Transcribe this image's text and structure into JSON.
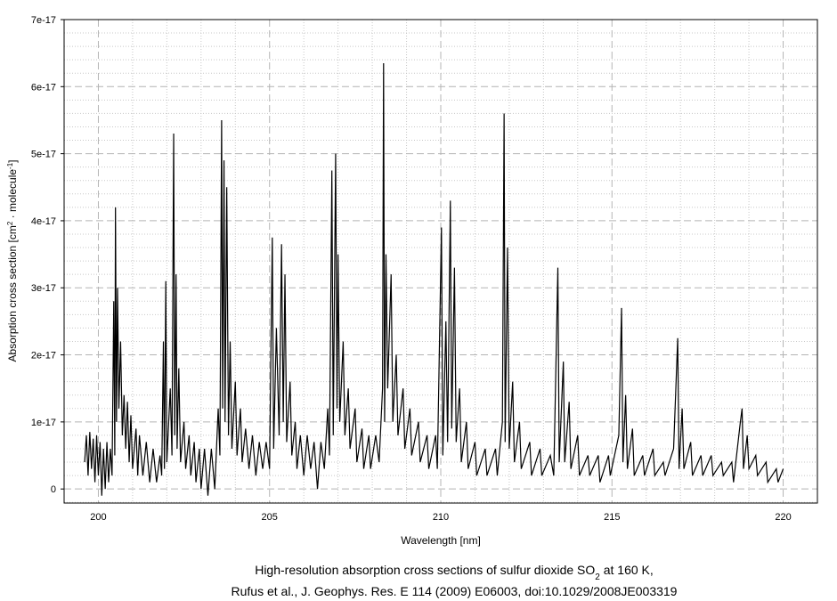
{
  "chart_data": {
    "type": "line",
    "x_label": "Wavelength [nm]",
    "y_label": [
      "Absorption cross section [cm",
      "2",
      " · molecule",
      "-1",
      "]"
    ],
    "caption": [
      [
        "High-resolution absorption cross sections of sulfur dioxide SO",
        "2",
        " at 160 K,"
      ],
      [
        "Rufus et al., J. Geophys. Res. E 114 (2009) E06003, doi:10.1029/2008JE003319"
      ]
    ],
    "color": "#000000",
    "grid": true,
    "xlim": [
      199,
      221
    ],
    "xticks": [
      200,
      205,
      210,
      215,
      220
    ],
    "ylim": [
      -2.1e-18,
      7e-17
    ],
    "yticks": [
      0,
      1e-17,
      2e-17,
      3e-17,
      4e-17,
      5e-17,
      6e-17,
      7e-17
    ],
    "x": [
      199.6,
      199.65,
      199.7,
      199.75,
      199.8,
      199.85,
      199.9,
      199.95,
      200.0,
      200.05,
      200.1,
      200.15,
      200.2,
      200.25,
      200.3,
      200.35,
      200.4,
      200.45,
      200.48,
      200.5,
      200.53,
      200.56,
      200.6,
      200.65,
      200.7,
      200.75,
      200.8,
      200.85,
      200.9,
      200.95,
      201.0,
      201.1,
      201.15,
      201.2,
      201.3,
      201.4,
      201.5,
      201.6,
      201.7,
      201.8,
      201.85,
      201.9,
      201.93,
      201.97,
      202.0,
      202.1,
      202.15,
      202.2,
      202.23,
      202.27,
      202.3,
      202.35,
      202.4,
      202.5,
      202.55,
      202.65,
      202.7,
      202.8,
      202.85,
      202.95,
      203.0,
      203.1,
      203.2,
      203.3,
      203.4,
      203.5,
      203.55,
      203.6,
      203.63,
      203.67,
      203.7,
      203.75,
      203.8,
      203.85,
      203.9,
      204.0,
      204.05,
      204.15,
      204.2,
      204.3,
      204.4,
      204.5,
      204.6,
      204.7,
      204.8,
      204.9,
      205.0,
      205.08,
      205.12,
      205.2,
      205.28,
      205.35,
      205.4,
      205.45,
      205.5,
      205.6,
      205.65,
      205.75,
      205.8,
      205.9,
      206.0,
      206.1,
      206.2,
      206.3,
      206.4,
      206.5,
      206.6,
      206.7,
      206.75,
      206.82,
      206.86,
      206.93,
      206.97,
      207.0,
      207.05,
      207.15,
      207.2,
      207.3,
      207.35,
      207.5,
      207.55,
      207.7,
      207.75,
      207.9,
      207.95,
      208.1,
      208.2,
      208.3,
      208.33,
      208.36,
      208.4,
      208.45,
      208.55,
      208.6,
      208.7,
      208.75,
      208.9,
      208.95,
      209.1,
      209.15,
      209.35,
      209.4,
      209.6,
      209.65,
      209.85,
      209.9,
      210.02,
      210.06,
      210.15,
      210.2,
      210.28,
      210.32,
      210.4,
      210.45,
      210.55,
      210.6,
      210.75,
      210.8,
      211.0,
      211.05,
      211.3,
      211.35,
      211.6,
      211.65,
      211.8,
      211.85,
      211.88,
      211.95,
      212.0,
      212.1,
      212.15,
      212.3,
      212.35,
      212.6,
      212.65,
      212.9,
      212.95,
      213.2,
      213.3,
      213.42,
      213.46,
      213.58,
      213.62,
      213.75,
      213.8,
      214.0,
      214.05,
      214.3,
      214.35,
      214.6,
      214.65,
      214.9,
      214.95,
      215.2,
      215.28,
      215.32,
      215.4,
      215.45,
      215.6,
      215.65,
      215.9,
      215.95,
      216.2,
      216.25,
      216.5,
      216.55,
      216.8,
      216.92,
      216.96,
      217.05,
      217.1,
      217.3,
      217.35,
      217.6,
      217.65,
      217.9,
      217.95,
      218.2,
      218.25,
      218.5,
      218.55,
      218.75,
      218.8,
      218.84,
      218.95,
      219.0,
      219.2,
      219.25,
      219.5,
      219.55,
      219.8,
      219.85,
      220.0
    ],
    "values": [
      4e-18,
      8e-18,
      2e-18,
      8.5e-18,
      3e-18,
      7.5e-18,
      1e-18,
      8e-18,
      2e-18,
      7e-18,
      -1e-18,
      6e-18,
      0,
      7e-18,
      1e-18,
      6e-18,
      2e-18,
      2.8e-17,
      5e-18,
      4.2e-17,
      1e-17,
      3e-17,
      1.2e-17,
      2.2e-17,
      8e-18,
      1.4e-17,
      6e-18,
      1.3e-17,
      4e-18,
      1.1e-17,
      3e-18,
      9e-18,
      2e-18,
      8e-18,
      2e-18,
      7e-18,
      1e-18,
      6e-18,
      1e-18,
      5e-18,
      2e-18,
      2.2e-17,
      3e-18,
      3.1e-17,
      4e-18,
      1.5e-17,
      5e-18,
      5.3e-17,
      8e-18,
      3.2e-17,
      6e-18,
      1.8e-17,
      4e-18,
      1e-17,
      3e-18,
      8e-18,
      2e-18,
      7e-18,
      1e-18,
      6e-18,
      0,
      6e-18,
      -1e-18,
      6e-18,
      0,
      1.2e-17,
      5e-18,
      5.5e-17,
      1.2e-17,
      4.9e-17,
      1e-17,
      4.5e-17,
      8e-18,
      2.2e-17,
      6e-18,
      1.6e-17,
      5e-18,
      1.2e-17,
      4e-18,
      9e-18,
      3e-18,
      8e-18,
      2e-18,
      7e-18,
      3e-18,
      7e-18,
      3e-18,
      3.75e-17,
      6e-18,
      2.4e-17,
      8e-18,
      3.65e-17,
      1e-17,
      3.2e-17,
      7e-18,
      1.6e-17,
      5e-18,
      1e-17,
      3e-18,
      8e-18,
      2e-18,
      8e-18,
      3e-18,
      7e-18,
      0,
      7e-18,
      3e-18,
      1.2e-17,
      5e-18,
      4.75e-17,
      8e-18,
      5e-17,
      1.2e-17,
      3.5e-17,
      1e-17,
      2.2e-17,
      8e-18,
      1.5e-17,
      6e-18,
      1.2e-17,
      4e-18,
      9e-18,
      3e-18,
      8e-18,
      3e-18,
      8e-18,
      4e-18,
      1.5e-17,
      6.35e-17,
      1e-17,
      3.5e-17,
      1.5e-17,
      3.2e-17,
      1e-17,
      2e-17,
      8e-18,
      1.5e-17,
      6e-18,
      1.2e-17,
      5e-18,
      1e-17,
      4e-18,
      8e-18,
      3e-18,
      8e-18,
      3e-18,
      3.9e-17,
      5e-18,
      2.5e-17,
      7e-18,
      4.3e-17,
      9e-18,
      3.3e-17,
      7e-18,
      1.5e-17,
      4e-18,
      1e-17,
      3e-18,
      7e-18,
      2e-18,
      6e-18,
      2e-18,
      6e-18,
      2e-18,
      1e-17,
      5.6e-17,
      7e-18,
      3.6e-17,
      6e-18,
      1.6e-17,
      4e-18,
      1e-17,
      3e-18,
      7e-18,
      2e-18,
      6e-18,
      2e-18,
      5e-18,
      2e-18,
      3.3e-17,
      4e-18,
      1.9e-17,
      4e-18,
      1.3e-17,
      3e-18,
      8e-18,
      2e-18,
      5e-18,
      2e-18,
      5e-18,
      1e-18,
      5e-18,
      2e-18,
      8e-18,
      2.7e-17,
      4e-18,
      1.4e-17,
      3e-18,
      9e-18,
      2e-18,
      5e-18,
      2e-18,
      6e-18,
      2e-18,
      4e-18,
      2e-18,
      6e-18,
      2.25e-17,
      3e-18,
      1.2e-17,
      3e-18,
      7e-18,
      2e-18,
      5e-18,
      2e-18,
      5e-18,
      2e-18,
      4e-18,
      2e-18,
      4e-18,
      1e-18,
      1e-17,
      1.2e-17,
      3e-18,
      8e-18,
      3e-18,
      5e-18,
      2e-18,
      4e-18,
      1e-18,
      3e-18,
      1e-18,
      3e-18
    ]
  }
}
